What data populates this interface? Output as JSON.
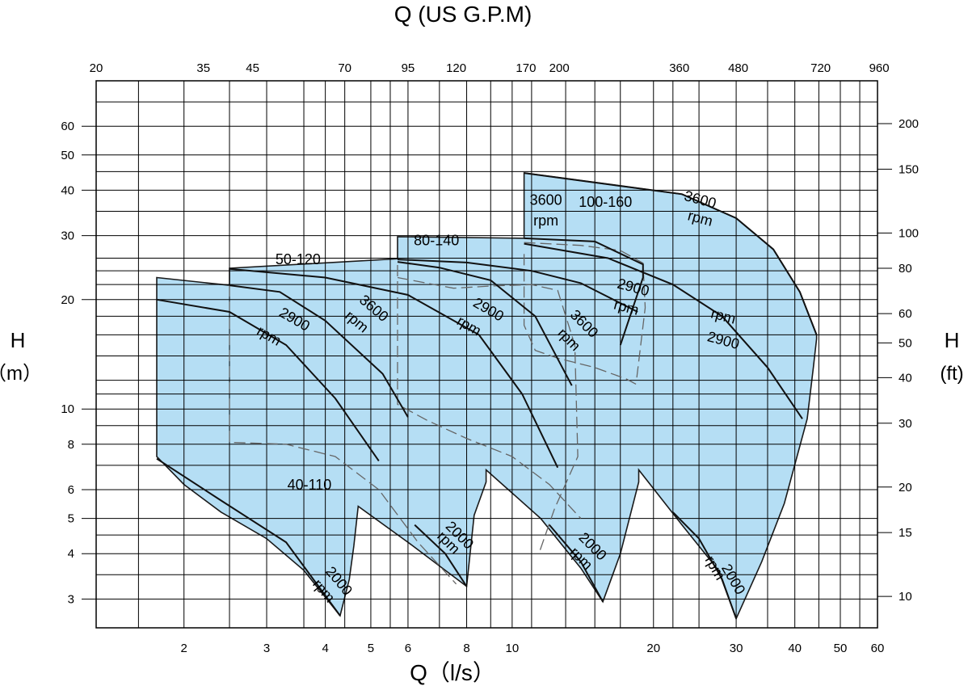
{
  "chart_data": {
    "type": "area",
    "title": "Q (US G.P.M)",
    "xlabel": "Q（l/s）",
    "ylabel_left": "H",
    "ylabel_left_unit": "（m）",
    "ylabel_right": "H",
    "ylabel_right_unit": "(ft)",
    "x_scale": "log",
    "y_scale": "log",
    "xlim": [
      1.3,
      60
    ],
    "ylim": [
      2.5,
      80
    ],
    "grid": true,
    "x_ticks_bottom": [
      {
        "value": 2,
        "label": "2"
      },
      {
        "value": 3,
        "label": "3"
      },
      {
        "value": 4,
        "label": "4"
      },
      {
        "value": 5,
        "label": "5"
      },
      {
        "value": 6,
        "label": "6"
      },
      {
        "value": 8,
        "label": "8"
      },
      {
        "value": 10,
        "label": "10"
      },
      {
        "value": 20,
        "label": "20"
      },
      {
        "value": 30,
        "label": "30"
      },
      {
        "value": 40,
        "label": "40"
      },
      {
        "value": 50,
        "label": "50"
      },
      {
        "value": 60,
        "label": "60"
      }
    ],
    "x_ticks_top": [
      {
        "value": 1.3,
        "label": "20"
      },
      {
        "value": 2.2,
        "label": "35"
      },
      {
        "value": 2.8,
        "label": "45"
      },
      {
        "value": 4.4,
        "label": "70"
      },
      {
        "value": 6,
        "label": "95"
      },
      {
        "value": 7.6,
        "label": "120"
      },
      {
        "value": 10.7,
        "label": "170"
      },
      {
        "value": 12.6,
        "label": "200"
      },
      {
        "value": 22.7,
        "label": "360"
      },
      {
        "value": 30.3,
        "label": "480"
      },
      {
        "value": 45.4,
        "label": "720"
      },
      {
        "value": 60.5,
        "label": "960"
      }
    ],
    "y_ticks_left": [
      {
        "value": 3,
        "label": "3"
      },
      {
        "value": 4,
        "label": "4"
      },
      {
        "value": 5,
        "label": "5"
      },
      {
        "value": 6,
        "label": "6"
      },
      {
        "value": 8,
        "label": "8"
      },
      {
        "value": 10,
        "label": "10"
      },
      {
        "value": 20,
        "label": "20"
      },
      {
        "value": 30,
        "label": "30"
      },
      {
        "value": 40,
        "label": "40"
      },
      {
        "value": 50,
        "label": "50"
      },
      {
        "value": 60,
        "label": "60"
      }
    ],
    "y_ticks_right": [
      {
        "value": 3.05,
        "label": "10"
      },
      {
        "value": 4.57,
        "label": "15"
      },
      {
        "value": 6.1,
        "label": "20"
      },
      {
        "value": 9.14,
        "label": "30"
      },
      {
        "value": 12.2,
        "label": "40"
      },
      {
        "value": 15.2,
        "label": "50"
      },
      {
        "value": 18.3,
        "label": "60"
      },
      {
        "value": 24.4,
        "label": "80"
      },
      {
        "value": 30.5,
        "label": "100"
      },
      {
        "value": 45.7,
        "label": "150"
      },
      {
        "value": 61,
        "label": "200"
      }
    ],
    "grid_x": [
      1.3,
      1.6,
      2,
      2.5,
      3,
      3.6,
      4,
      4.4,
      5,
      5.5,
      6,
      7,
      8,
      9,
      10,
      11,
      13,
      15,
      17,
      20,
      22,
      25,
      30,
      35,
      40,
      45,
      50,
      55,
      60
    ],
    "grid_y": [
      3,
      3.5,
      4,
      4.5,
      5,
      6,
      7,
      8,
      9,
      10,
      11,
      12,
      14,
      16,
      18,
      20,
      22,
      24,
      26,
      30,
      35,
      40,
      45,
      50,
      60,
      70
    ],
    "fill_color": "#b5def4",
    "series": [
      {
        "name": "40-110",
        "region": [
          [
            1.75,
            23
          ],
          [
            2.5,
            21.9
          ],
          [
            2.5,
            24.4
          ],
          [
            5.7,
            25.9
          ],
          [
            5.7,
            29.8
          ],
          [
            10.6,
            29.5
          ],
          [
            10.6,
            44.6
          ],
          [
            23,
            39
          ],
          [
            30,
            33.5
          ],
          [
            36,
            27.5
          ],
          [
            41,
            21
          ],
          [
            44.5,
            16
          ],
          [
            44.5,
            15.6
          ],
          [
            43.8,
            13
          ],
          [
            42.5,
            9.4
          ],
          [
            38,
            5.5
          ],
          [
            34,
            3.8
          ],
          [
            30,
            2.65
          ],
          [
            27.5,
            3.6
          ],
          [
            23,
            4.8
          ],
          [
            18.6,
            6.8
          ],
          [
            18.6,
            6.3
          ],
          [
            17,
            4
          ],
          [
            15.6,
            2.95
          ],
          [
            14,
            3.65
          ],
          [
            11.5,
            5
          ],
          [
            8.8,
            6.8
          ],
          [
            8.8,
            6.3
          ],
          [
            8.3,
            5.1
          ],
          [
            8,
            3.25
          ],
          [
            7,
            3.7
          ],
          [
            6,
            4.3
          ],
          [
            4.7,
            5.4
          ],
          [
            4.7,
            5.4
          ],
          [
            4.6,
            4.2
          ],
          [
            4.5,
            3.4
          ],
          [
            4.3,
            2.7
          ],
          [
            3.6,
            3.6
          ],
          [
            3,
            4.4
          ],
          [
            2.4,
            5.2
          ],
          [
            2,
            6.2
          ],
          [
            1.75,
            7.4
          ]
        ],
        "curves": [
          {
            "label": "2900 rpm",
            "points": [
              [
                1.75,
                20
              ],
              [
                2.5,
                18.5
              ],
              [
                3.3,
                15
              ],
              [
                4.2,
                10.7
              ],
              [
                5.2,
                7.2
              ]
            ]
          },
          {
            "label": "3600 rpm",
            "points": [
              [
                2.5,
                21.9
              ],
              [
                3.2,
                21
              ],
              [
                4,
                17.5
              ],
              [
                5.3,
                12.5
              ],
              [
                6,
                9.5
              ]
            ]
          },
          {
            "label": "2000 rpm",
            "points": [
              [
                1.75,
                7.3
              ],
              [
                2.4,
                5.6
              ],
              [
                3.3,
                4.3
              ],
              [
                4.3,
                2.7
              ]
            ]
          }
        ]
      },
      {
        "name": "50-120",
        "curves": [
          {
            "label": "2900 rpm",
            "points": [
              [
                2.5,
                24.3
              ],
              [
                4,
                23
              ],
              [
                6,
                20.6
              ],
              [
                8.5,
                16
              ],
              [
                10.5,
                11
              ],
              [
                12.5,
                6.9
              ]
            ]
          },
          {
            "label": "3600 rpm",
            "points": [
              [
                5.7,
                25.4
              ],
              [
                7,
                24.5
              ],
              [
                9,
                22.6
              ],
              [
                11.2,
                18
              ],
              [
                13.4,
                11.6
              ]
            ]
          },
          {
            "label": "2000 rpm",
            "points": [
              [
                6.2,
                4.8
              ],
              [
                7.2,
                4
              ],
              [
                8,
                3.25
              ]
            ]
          }
        ]
      },
      {
        "name": "80-140",
        "curves": [
          {
            "label": "2900 rpm",
            "points": [
              [
                5.7,
                25.8
              ],
              [
                8,
                25.3
              ],
              [
                11,
                24
              ],
              [
                14,
                22.2
              ],
              [
                18.5,
                18.5
              ]
            ]
          },
          {
            "label": "3600 rpm",
            "points": [
              [
                10.6,
                29.5
              ],
              [
                15,
                28.9
              ],
              [
                19,
                25
              ],
              [
                19,
                23
              ],
              [
                17,
                15
              ]
            ]
          },
          {
            "label": "2000 rpm",
            "points": [
              [
                12,
                4.8
              ],
              [
                14,
                3.8
              ],
              [
                15.6,
                2.95
              ]
            ]
          }
        ]
      },
      {
        "name": "100-160",
        "curves": [
          {
            "label": "2900 rpm",
            "points": [
              [
                10.6,
                28.5
              ],
              [
                16,
                26
              ],
              [
                22,
                22
              ],
              [
                28,
                18
              ],
              [
                35,
                13
              ],
              [
                41.5,
                9.4
              ]
            ]
          },
          {
            "label": "3600 rpm",
            "points": [
              [
                10.6,
                44.6
              ],
              [
                23,
                39
              ],
              [
                30,
                33.5
              ],
              [
                36,
                27.5
              ],
              [
                41,
                21
              ],
              [
                44.5,
                16
              ]
            ]
          },
          {
            "label": "2000 rpm",
            "points": [
              [
                22,
                5.2
              ],
              [
                25,
                4.4
              ],
              [
                28,
                3.4
              ],
              [
                30,
                2.65
              ]
            ]
          }
        ]
      }
    ],
    "dashed_boundaries": [
      [
        [
          2.5,
          21.9
        ],
        [
          2.5,
          8.1
        ],
        [
          3.3,
          8
        ],
        [
          4.2,
          7.4
        ],
        [
          5.2,
          6
        ],
        [
          6.3,
          4.3
        ],
        [
          7.6,
          3.3
        ]
      ],
      [
        [
          5.7,
          24.9
        ],
        [
          5.7,
          10.3
        ],
        [
          6.6,
          9.3
        ],
        [
          8,
          8.3
        ],
        [
          10,
          7.4
        ],
        [
          12,
          6.2
        ],
        [
          14,
          5
        ]
      ],
      [
        [
          10.6,
          26.7
        ],
        [
          10.6,
          17
        ],
        [
          11.2,
          14.5
        ],
        [
          12.5,
          13.8
        ],
        [
          15,
          13
        ],
        [
          17.5,
          12.1
        ],
        [
          18.6,
          11.6
        ]
      ],
      [
        [
          5.7,
          23
        ],
        [
          7.5,
          21.5
        ],
        [
          9,
          21.8
        ],
        [
          11,
          22
        ],
        [
          12.5,
          21.2
        ],
        [
          13.6,
          15
        ],
        [
          13.8,
          7.4
        ],
        [
          12.3,
          5.3
        ],
        [
          11.4,
          4
        ]
      ],
      [
        [
          10.6,
          28.7
        ],
        [
          14,
          28.2
        ],
        [
          17,
          27.3
        ],
        [
          19,
          25.2
        ],
        [
          19.2,
          19
        ],
        [
          18.4,
          12
        ]
      ]
    ],
    "annotations": [
      {
        "text": "40-110",
        "x": 3.7,
        "y": 6
      },
      {
        "text": "50-120",
        "x": 3.5,
        "y": 25
      },
      {
        "text": "80-140",
        "x": 6.9,
        "y": 28.2
      },
      {
        "text": "100-160",
        "x": 15.8,
        "y": 36
      },
      {
        "text": "3600",
        "x": 11.8,
        "y": 36.5
      },
      {
        "text": "rpm",
        "x": 11.8,
        "y": 32
      },
      {
        "text": "3600",
        "x": 25,
        "y": 36.6,
        "angle": 15
      },
      {
        "text": "rpm",
        "x": 25,
        "y": 32.5,
        "angle": 15
      },
      {
        "text": "2900",
        "x": 18,
        "y": 21,
        "angle": 15
      },
      {
        "text": "rpm",
        "x": 17.4,
        "y": 18.5,
        "angle": 15
      },
      {
        "text": "2900",
        "x": 28,
        "y": 15,
        "angle": 15
      },
      {
        "text": "rpm",
        "x": 28,
        "y": 17.5,
        "angle": 15
      },
      {
        "text": "2900",
        "x": 3.4,
        "y": 17.2,
        "angle": 30
      },
      {
        "text": "rpm",
        "x": 3.0,
        "y": 15.5,
        "angle": 30
      },
      {
        "text": "3600",
        "x": 5.0,
        "y": 18.5,
        "angle": 40
      },
      {
        "text": "rpm",
        "x": 4.6,
        "y": 17,
        "angle": 40
      },
      {
        "text": "2900",
        "x": 8.8,
        "y": 18.3,
        "angle": 30
      },
      {
        "text": "rpm",
        "x": 8.0,
        "y": 16.5,
        "angle": 30
      },
      {
        "text": "3600",
        "x": 14.0,
        "y": 16.8,
        "angle": 45
      },
      {
        "text": "rpm",
        "x": 13.0,
        "y": 15.2,
        "angle": 45
      },
      {
        "text": "2000",
        "x": 4.2,
        "y": 3.3,
        "angle": 50
      },
      {
        "text": "rpm",
        "x": 3.9,
        "y": 3.1,
        "angle": 50
      },
      {
        "text": "2000",
        "x": 7.6,
        "y": 4.4,
        "angle": 45
      },
      {
        "text": "rpm",
        "x": 7.2,
        "y": 4.2,
        "angle": 45
      },
      {
        "text": "2000",
        "x": 14.6,
        "y": 4.1,
        "angle": 45
      },
      {
        "text": "rpm",
        "x": 13.8,
        "y": 3.8,
        "angle": 45
      },
      {
        "text": "2000",
        "x": 29,
        "y": 3.35,
        "angle": 60
      },
      {
        "text": "rpm",
        "x": 26.5,
        "y": 3.6,
        "angle": 60
      }
    ]
  }
}
